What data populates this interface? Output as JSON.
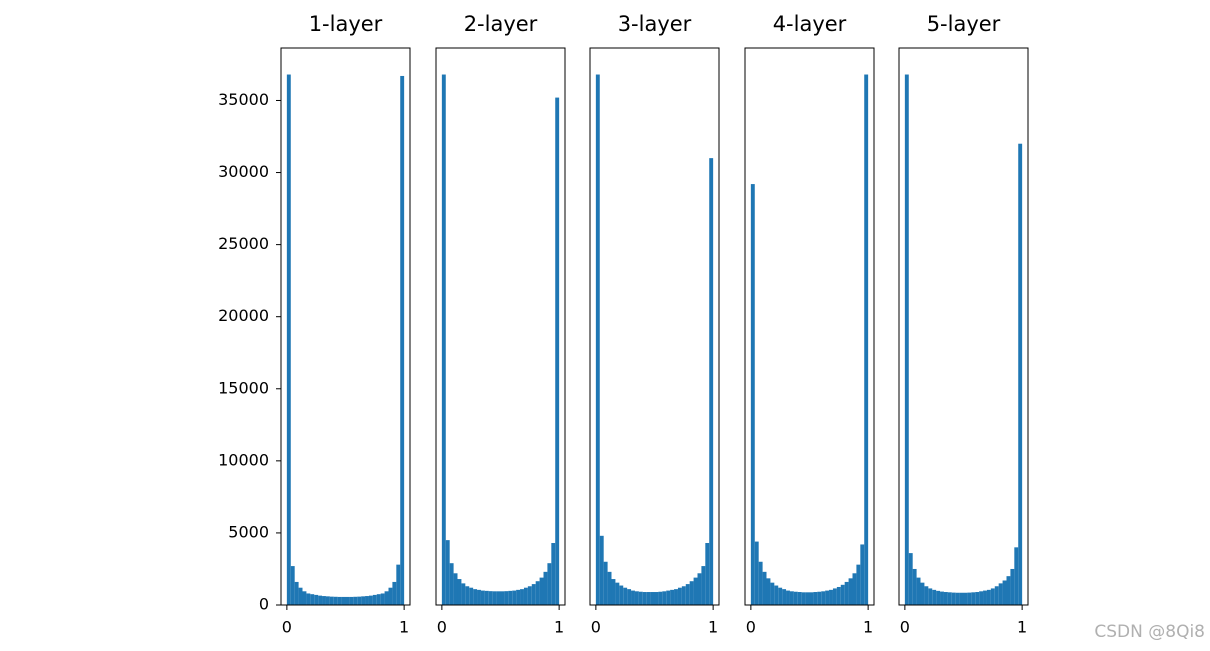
{
  "chart_data": [
    {
      "type": "histogram",
      "title": "1-layer",
      "color": "#1f77b4",
      "bins": [
        0,
        0.0333,
        0.0667,
        0.1,
        0.1333,
        0.1667,
        0.2,
        0.2333,
        0.2667,
        0.3,
        0.3333,
        0.3667,
        0.4,
        0.4333,
        0.4667,
        0.5,
        0.5333,
        0.5667,
        0.6,
        0.6333,
        0.6667,
        0.7,
        0.7333,
        0.7667,
        0.8,
        0.8333,
        0.8667,
        0.9,
        0.9333,
        0.9667,
        1
      ],
      "values": [
        36800,
        2700,
        1600,
        1200,
        950,
        800,
        750,
        700,
        650,
        620,
        600,
        580,
        570,
        560,
        560,
        560,
        560,
        570,
        580,
        600,
        620,
        650,
        700,
        750,
        800,
        950,
        1200,
        1600,
        2800,
        36700
      ],
      "xlim": [
        -0.05,
        1.05
      ],
      "ylim": [
        0,
        38640
      ],
      "xticks": [
        0,
        1
      ],
      "yticks": [
        0,
        5000,
        10000,
        15000,
        20000,
        25000,
        30000,
        35000
      ]
    },
    {
      "type": "histogram",
      "title": "2-layer",
      "color": "#1f77b4",
      "bins": [
        0,
        0.0333,
        0.0667,
        0.1,
        0.1333,
        0.1667,
        0.2,
        0.2333,
        0.2667,
        0.3,
        0.3333,
        0.3667,
        0.4,
        0.4333,
        0.4667,
        0.5,
        0.5333,
        0.5667,
        0.6,
        0.6333,
        0.6667,
        0.7,
        0.7333,
        0.7667,
        0.8,
        0.8333,
        0.8667,
        0.9,
        0.9333,
        0.9667,
        1
      ],
      "values": [
        36800,
        4500,
        2900,
        2200,
        1800,
        1500,
        1300,
        1200,
        1100,
        1050,
        1000,
        980,
        960,
        950,
        950,
        950,
        960,
        980,
        1000,
        1050,
        1100,
        1200,
        1300,
        1450,
        1650,
        1900,
        2300,
        2900,
        4300,
        35200
      ],
      "xlim": [
        -0.05,
        1.05
      ],
      "ylim": [
        0,
        38640
      ],
      "xticks": [
        0,
        1
      ]
    },
    {
      "type": "histogram",
      "title": "3-layer",
      "color": "#1f77b4",
      "bins": [
        0,
        0.0333,
        0.0667,
        0.1,
        0.1333,
        0.1667,
        0.2,
        0.2333,
        0.2667,
        0.3,
        0.3333,
        0.3667,
        0.4,
        0.4333,
        0.4667,
        0.5,
        0.5333,
        0.5667,
        0.6,
        0.6333,
        0.6667,
        0.7,
        0.7333,
        0.7667,
        0.8,
        0.8333,
        0.8667,
        0.9,
        0.9333,
        0.9667,
        1
      ],
      "values": [
        36800,
        4800,
        3000,
        2300,
        1800,
        1550,
        1350,
        1200,
        1100,
        1000,
        950,
        920,
        900,
        900,
        900,
        900,
        920,
        950,
        1000,
        1050,
        1100,
        1200,
        1300,
        1450,
        1650,
        1900,
        2200,
        2700,
        4300,
        31000
      ],
      "xlim": [
        -0.05,
        1.05
      ],
      "ylim": [
        0,
        38640
      ],
      "xticks": [
        0,
        1
      ]
    },
    {
      "type": "histogram",
      "title": "4-layer",
      "color": "#1f77b4",
      "bins": [
        0,
        0.0333,
        0.0667,
        0.1,
        0.1333,
        0.1667,
        0.2,
        0.2333,
        0.2667,
        0.3,
        0.3333,
        0.3667,
        0.4,
        0.4333,
        0.4667,
        0.5,
        0.5333,
        0.5667,
        0.6,
        0.6333,
        0.6667,
        0.7,
        0.7333,
        0.7667,
        0.8,
        0.8333,
        0.8667,
        0.9,
        0.9333,
        0.9667,
        1
      ],
      "values": [
        29200,
        4400,
        3000,
        2300,
        1850,
        1550,
        1350,
        1200,
        1100,
        1000,
        950,
        920,
        900,
        880,
        880,
        880,
        900,
        920,
        950,
        1000,
        1050,
        1150,
        1250,
        1400,
        1600,
        1850,
        2200,
        2800,
        4200,
        36800
      ],
      "xlim": [
        -0.05,
        1.05
      ],
      "ylim": [
        0,
        38640
      ],
      "xticks": [
        0,
        1
      ]
    },
    {
      "type": "histogram",
      "title": "5-layer",
      "color": "#1f77b4",
      "bins": [
        0,
        0.0333,
        0.0667,
        0.1,
        0.1333,
        0.1667,
        0.2,
        0.2333,
        0.2667,
        0.3,
        0.3333,
        0.3667,
        0.4,
        0.4333,
        0.4667,
        0.5,
        0.5333,
        0.5667,
        0.6,
        0.6333,
        0.6667,
        0.7,
        0.7333,
        0.7667,
        0.8,
        0.8333,
        0.8667,
        0.9,
        0.9333,
        0.9667,
        1
      ],
      "values": [
        36800,
        3600,
        2500,
        1900,
        1550,
        1300,
        1150,
        1050,
        980,
        930,
        900,
        880,
        860,
        850,
        850,
        850,
        860,
        880,
        900,
        950,
        1000,
        1050,
        1150,
        1300,
        1500,
        1700,
        2000,
        2500,
        4000,
        32000
      ],
      "xlim": [
        -0.05,
        1.05
      ],
      "ylim": [
        0,
        38640
      ],
      "xticks": [
        0,
        1
      ]
    }
  ],
  "watermark": "CSDN @8Qi8"
}
